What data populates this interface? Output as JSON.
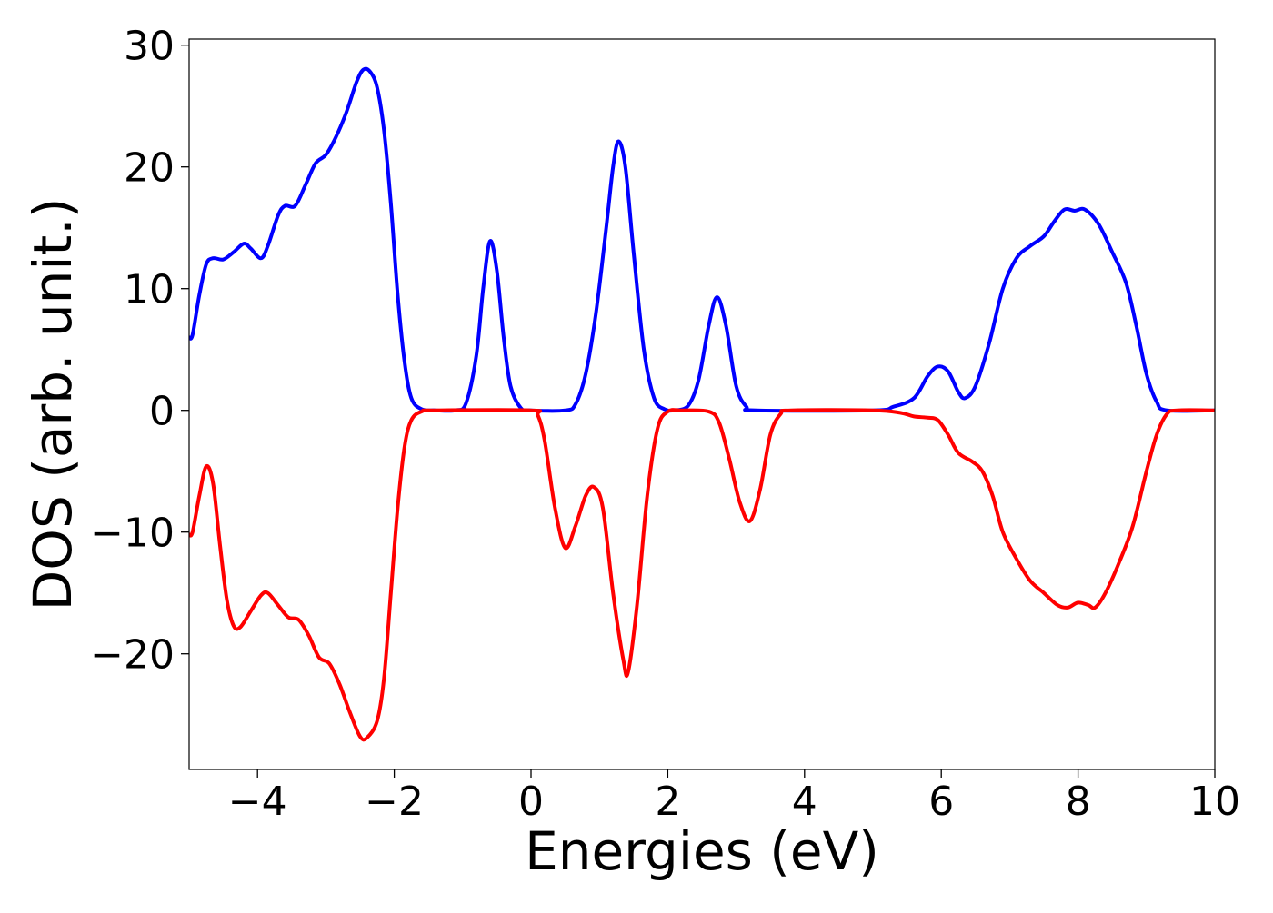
{
  "chart_data": {
    "type": "line",
    "title": "",
    "xlabel": "Energies (eV)",
    "ylabel": "DOS (arb. unit.)",
    "xlim": [
      -5,
      10
    ],
    "ylim": [
      -29.5,
      30.5
    ],
    "xticks": [
      -4,
      -2,
      0,
      2,
      4,
      6,
      8,
      10
    ],
    "yticks": [
      -20,
      -10,
      0,
      10,
      20,
      30
    ],
    "xtick_labels": [
      "−4",
      "−2",
      "0",
      "2",
      "4",
      "6",
      "8",
      "10"
    ],
    "ytick_labels": [
      "−20",
      "−10",
      "0",
      "10",
      "20",
      "30"
    ],
    "grid": false,
    "series": [
      {
        "color": "#0000ff",
        "points": [
          [
            -5.0,
            6.0
          ],
          [
            -4.95,
            6.2
          ],
          [
            -4.85,
            9.5
          ],
          [
            -4.75,
            12.0
          ],
          [
            -4.65,
            12.5
          ],
          [
            -4.5,
            12.4
          ],
          [
            -4.35,
            13.0
          ],
          [
            -4.2,
            13.7
          ],
          [
            -4.1,
            13.3
          ],
          [
            -3.95,
            12.5
          ],
          [
            -3.85,
            13.5
          ],
          [
            -3.7,
            16.0
          ],
          [
            -3.6,
            16.8
          ],
          [
            -3.45,
            16.8
          ],
          [
            -3.3,
            18.5
          ],
          [
            -3.15,
            20.3
          ],
          [
            -3.0,
            21.0
          ],
          [
            -2.85,
            22.5
          ],
          [
            -2.7,
            24.5
          ],
          [
            -2.55,
            27.0
          ],
          [
            -2.45,
            28.0
          ],
          [
            -2.35,
            27.8
          ],
          [
            -2.25,
            26.5
          ],
          [
            -2.15,
            23.0
          ],
          [
            -2.05,
            17.0
          ],
          [
            -1.95,
            9.5
          ],
          [
            -1.85,
            4.0
          ],
          [
            -1.75,
            1.0
          ],
          [
            -1.6,
            0.1
          ],
          [
            -1.4,
            0.0
          ],
          [
            -1.1,
            0.0
          ],
          [
            -0.95,
            0.6
          ],
          [
            -0.8,
            4.5
          ],
          [
            -0.7,
            10.0
          ],
          [
            -0.6,
            13.9
          ],
          [
            -0.5,
            11.5
          ],
          [
            -0.4,
            6.0
          ],
          [
            -0.3,
            2.0
          ],
          [
            -0.15,
            0.2
          ],
          [
            0.0,
            0.0
          ],
          [
            0.5,
            0.0
          ],
          [
            0.65,
            0.5
          ],
          [
            0.8,
            3.0
          ],
          [
            0.95,
            8.0
          ],
          [
            1.1,
            15.0
          ],
          [
            1.2,
            20.0
          ],
          [
            1.28,
            22.1
          ],
          [
            1.38,
            20.0
          ],
          [
            1.5,
            13.0
          ],
          [
            1.65,
            5.0
          ],
          [
            1.8,
            1.0
          ],
          [
            1.95,
            0.1
          ],
          [
            2.1,
            0.0
          ],
          [
            2.3,
            0.4
          ],
          [
            2.45,
            2.5
          ],
          [
            2.6,
            7.0
          ],
          [
            2.72,
            9.3
          ],
          [
            2.85,
            7.0
          ],
          [
            3.0,
            2.0
          ],
          [
            3.15,
            0.3
          ],
          [
            3.3,
            0.0
          ],
          [
            5.0,
            0.0
          ],
          [
            5.3,
            0.3
          ],
          [
            5.6,
            1.0
          ],
          [
            5.8,
            2.8
          ],
          [
            5.95,
            3.6
          ],
          [
            6.1,
            3.2
          ],
          [
            6.25,
            1.5
          ],
          [
            6.35,
            1.0
          ],
          [
            6.5,
            2.0
          ],
          [
            6.7,
            5.5
          ],
          [
            6.9,
            10.0
          ],
          [
            7.1,
            12.5
          ],
          [
            7.3,
            13.5
          ],
          [
            7.5,
            14.3
          ],
          [
            7.65,
            15.5
          ],
          [
            7.8,
            16.5
          ],
          [
            7.95,
            16.4
          ],
          [
            8.1,
            16.5
          ],
          [
            8.3,
            15.3
          ],
          [
            8.5,
            13.0
          ],
          [
            8.7,
            10.5
          ],
          [
            8.85,
            7.0
          ],
          [
            9.0,
            3.0
          ],
          [
            9.15,
            0.7
          ],
          [
            9.3,
            0.0
          ],
          [
            10.0,
            0.0
          ]
        ]
      },
      {
        "color": "#ff0000",
        "points": [
          [
            -5.0,
            -10.2
          ],
          [
            -4.95,
            -10.0
          ],
          [
            -4.85,
            -7.0
          ],
          [
            -4.75,
            -4.6
          ],
          [
            -4.65,
            -6.0
          ],
          [
            -4.55,
            -11.0
          ],
          [
            -4.45,
            -15.5
          ],
          [
            -4.35,
            -17.7
          ],
          [
            -4.25,
            -17.8
          ],
          [
            -4.1,
            -16.5
          ],
          [
            -3.95,
            -15.2
          ],
          [
            -3.85,
            -15.0
          ],
          [
            -3.7,
            -16.0
          ],
          [
            -3.55,
            -17.0
          ],
          [
            -3.4,
            -17.2
          ],
          [
            -3.25,
            -18.5
          ],
          [
            -3.1,
            -20.3
          ],
          [
            -2.95,
            -20.8
          ],
          [
            -2.8,
            -22.5
          ],
          [
            -2.65,
            -24.8
          ],
          [
            -2.5,
            -26.8
          ],
          [
            -2.4,
            -26.9
          ],
          [
            -2.25,
            -25.5
          ],
          [
            -2.15,
            -22.0
          ],
          [
            -2.05,
            -15.0
          ],
          [
            -1.95,
            -8.0
          ],
          [
            -1.85,
            -3.0
          ],
          [
            -1.75,
            -0.8
          ],
          [
            -1.6,
            -0.1
          ],
          [
            -1.4,
            0.0
          ],
          [
            0.0,
            0.0
          ],
          [
            0.1,
            -0.4
          ],
          [
            0.2,
            -2.5
          ],
          [
            0.35,
            -8.0
          ],
          [
            0.5,
            -11.3
          ],
          [
            0.65,
            -9.5
          ],
          [
            0.8,
            -7.0
          ],
          [
            0.92,
            -6.3
          ],
          [
            1.05,
            -8.0
          ],
          [
            1.2,
            -15.0
          ],
          [
            1.35,
            -20.5
          ],
          [
            1.42,
            -21.5
          ],
          [
            1.55,
            -16.0
          ],
          [
            1.7,
            -7.0
          ],
          [
            1.85,
            -1.5
          ],
          [
            2.0,
            -0.1
          ],
          [
            2.2,
            0.0
          ],
          [
            2.6,
            -0.1
          ],
          [
            2.75,
            -1.0
          ],
          [
            2.9,
            -4.0
          ],
          [
            3.05,
            -7.5
          ],
          [
            3.2,
            -9.1
          ],
          [
            3.35,
            -6.5
          ],
          [
            3.5,
            -2.0
          ],
          [
            3.65,
            -0.3
          ],
          [
            3.8,
            0.0
          ],
          [
            5.0,
            0.0
          ],
          [
            5.4,
            -0.2
          ],
          [
            5.6,
            -0.5
          ],
          [
            5.8,
            -0.6
          ],
          [
            5.95,
            -0.8
          ],
          [
            6.1,
            -2.0
          ],
          [
            6.25,
            -3.5
          ],
          [
            6.45,
            -4.2
          ],
          [
            6.6,
            -5.0
          ],
          [
            6.75,
            -7.0
          ],
          [
            6.9,
            -10.0
          ],
          [
            7.1,
            -12.2
          ],
          [
            7.3,
            -14.0
          ],
          [
            7.5,
            -15.0
          ],
          [
            7.7,
            -16.0
          ],
          [
            7.85,
            -16.2
          ],
          [
            8.0,
            -15.8
          ],
          [
            8.15,
            -16.0
          ],
          [
            8.25,
            -16.2
          ],
          [
            8.4,
            -15.0
          ],
          [
            8.6,
            -12.5
          ],
          [
            8.8,
            -9.5
          ],
          [
            9.0,
            -5.0
          ],
          [
            9.15,
            -2.0
          ],
          [
            9.3,
            -0.3
          ],
          [
            9.45,
            0.0
          ],
          [
            10.0,
            0.0
          ]
        ]
      }
    ]
  }
}
